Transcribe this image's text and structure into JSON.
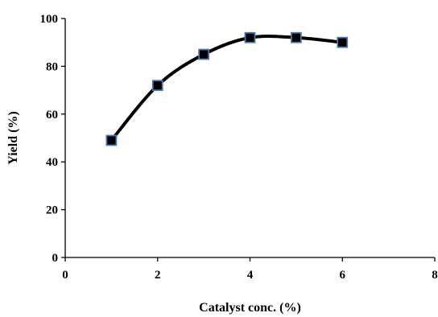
{
  "chart_data": {
    "type": "scatter",
    "title": "",
    "xlabel": "Catalyst conc. (%)",
    "ylabel": "Yield (%)",
    "xlim": [
      0,
      8
    ],
    "ylim": [
      0,
      100
    ],
    "x_ticks": [
      0,
      2,
      4,
      6,
      8
    ],
    "y_ticks": [
      0,
      20,
      40,
      60,
      80,
      100
    ],
    "grid": false,
    "legend": "none",
    "smooth_line": true,
    "series": [
      {
        "x": [
          1,
          2,
          3,
          4,
          5,
          6
        ],
        "values": [
          49,
          72,
          85,
          92,
          92,
          90
        ],
        "marker": "square",
        "marker_fill": "#000000",
        "marker_edge": "#4a78b5",
        "line_color": "#000000"
      }
    ]
  }
}
